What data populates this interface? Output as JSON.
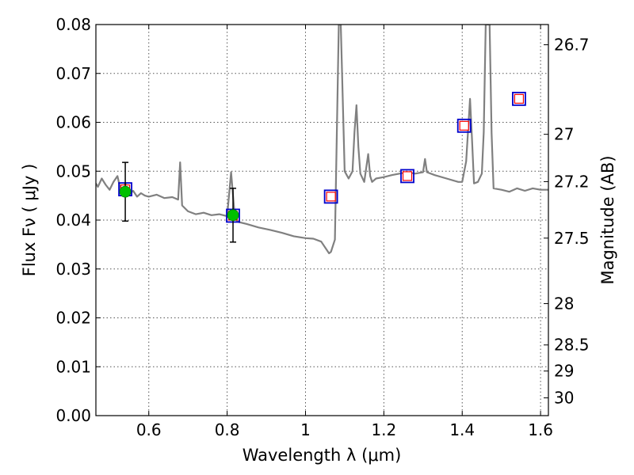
{
  "chart_data": {
    "type": "line",
    "xlabel": "Wavelength  λ (μm)",
    "ylabel": "Flux  Fν  ( μJy )",
    "y2label": "Magnitude (AB)",
    "xlim": [
      0.465,
      1.62
    ],
    "ylim": [
      0.0,
      0.08
    ],
    "grid": true,
    "x_ticks": [
      0.6,
      0.8,
      1.0,
      1.2,
      1.4,
      1.6
    ],
    "x_tick_labels": [
      "0.6",
      "0.8",
      "1",
      "1.2",
      "1.4",
      "1.6"
    ],
    "y_ticks": [
      0.0,
      0.01,
      0.02,
      0.03,
      0.04,
      0.05,
      0.06,
      0.07,
      0.08
    ],
    "y_tick_labels": [
      "0.00",
      "0.01",
      "0.02",
      "0.03",
      "0.04",
      "0.05",
      "0.06",
      "0.07",
      "0.08"
    ],
    "mag_ticks": [
      26.7,
      27,
      27.2,
      27.5,
      28,
      28.5,
      29,
      30
    ],
    "mag_tick_labels": [
      "26.7",
      "27",
      "27.2",
      "27.5",
      "28",
      "28.5",
      "29",
      "30"
    ],
    "spectrum": {
      "color": "#808080",
      "x": [
        0.465,
        0.47,
        0.48,
        0.49,
        0.5,
        0.51,
        0.52,
        0.53,
        0.54,
        0.55,
        0.56,
        0.57,
        0.58,
        0.59,
        0.6,
        0.62,
        0.64,
        0.66,
        0.675,
        0.68,
        0.685,
        0.7,
        0.72,
        0.74,
        0.76,
        0.78,
        0.8,
        0.81,
        0.82,
        0.83,
        0.85,
        0.88,
        0.91,
        0.94,
        0.97,
        1.0,
        1.02,
        1.04,
        1.06,
        1.065,
        1.075,
        1.085,
        1.09,
        1.1,
        1.11,
        1.12,
        1.125,
        1.13,
        1.135,
        1.14,
        1.15,
        1.16,
        1.165,
        1.17,
        1.18,
        1.2,
        1.22,
        1.24,
        1.26,
        1.28,
        1.3,
        1.305,
        1.31,
        1.33,
        1.36,
        1.39,
        1.4,
        1.41,
        1.42,
        1.425,
        1.43,
        1.44,
        1.45,
        1.455,
        1.46,
        1.465,
        1.47,
        1.475,
        1.48,
        1.5,
        1.52,
        1.54,
        1.56,
        1.58,
        1.6,
        1.62
      ],
      "y": [
        0.0475,
        0.0468,
        0.0485,
        0.0472,
        0.0462,
        0.0478,
        0.049,
        0.0455,
        0.0475,
        0.0452,
        0.046,
        0.0448,
        0.0455,
        0.045,
        0.0448,
        0.0452,
        0.0445,
        0.0447,
        0.0442,
        0.0518,
        0.043,
        0.0418,
        0.0412,
        0.0415,
        0.041,
        0.0412,
        0.0408,
        0.0498,
        0.0402,
        0.0396,
        0.0392,
        0.0385,
        0.038,
        0.0374,
        0.0367,
        0.0363,
        0.0362,
        0.0356,
        0.0332,
        0.0335,
        0.036,
        0.08,
        0.08,
        0.05,
        0.0485,
        0.05,
        0.058,
        0.0635,
        0.055,
        0.0495,
        0.0478,
        0.0535,
        0.049,
        0.0478,
        0.0485,
        0.0488,
        0.0492,
        0.0495,
        0.0498,
        0.0495,
        0.0498,
        0.0525,
        0.0498,
        0.0492,
        0.0485,
        0.0478,
        0.0478,
        0.052,
        0.0648,
        0.0565,
        0.0475,
        0.0478,
        0.0495,
        0.058,
        0.08,
        0.08,
        0.08,
        0.0578,
        0.0465,
        0.0462,
        0.0458,
        0.0465,
        0.046,
        0.0465,
        0.0462,
        0.0462
      ]
    },
    "photometry": {
      "color": "#00c000",
      "points": [
        {
          "x": 0.54,
          "y": 0.0458,
          "yerr": 0.006
        },
        {
          "x": 0.815,
          "y": 0.041,
          "yerr": 0.0055
        }
      ]
    },
    "model_boxes": {
      "edge_color": "#0000cc",
      "inner_color": "#ff0000",
      "points": [
        {
          "x": 0.54,
          "y": 0.0463
        },
        {
          "x": 0.815,
          "y": 0.0409
        },
        {
          "x": 1.065,
          "y": 0.0448
        },
        {
          "x": 1.26,
          "y": 0.049
        },
        {
          "x": 1.405,
          "y": 0.0593
        },
        {
          "x": 1.545,
          "y": 0.0648
        }
      ]
    }
  }
}
